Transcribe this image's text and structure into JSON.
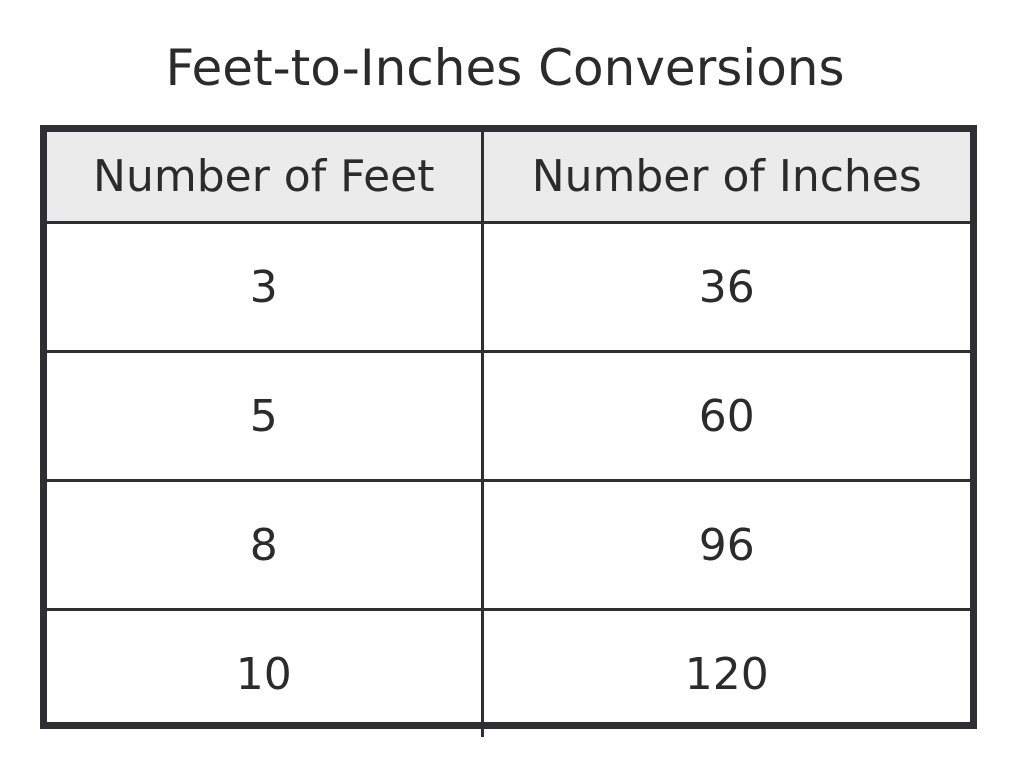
{
  "chart_data": {
    "type": "table",
    "title": "Feet-to-Inches Conversions",
    "columns": [
      "Number of Feet",
      "Number of Inches"
    ],
    "rows": [
      [
        "3",
        "36"
      ],
      [
        "5",
        "60"
      ],
      [
        "8",
        "96"
      ],
      [
        "10",
        "120"
      ]
    ]
  },
  "colors": {
    "header_background": "#ebebeb",
    "border": "#2f2f33",
    "text": "#2b2b2b"
  }
}
